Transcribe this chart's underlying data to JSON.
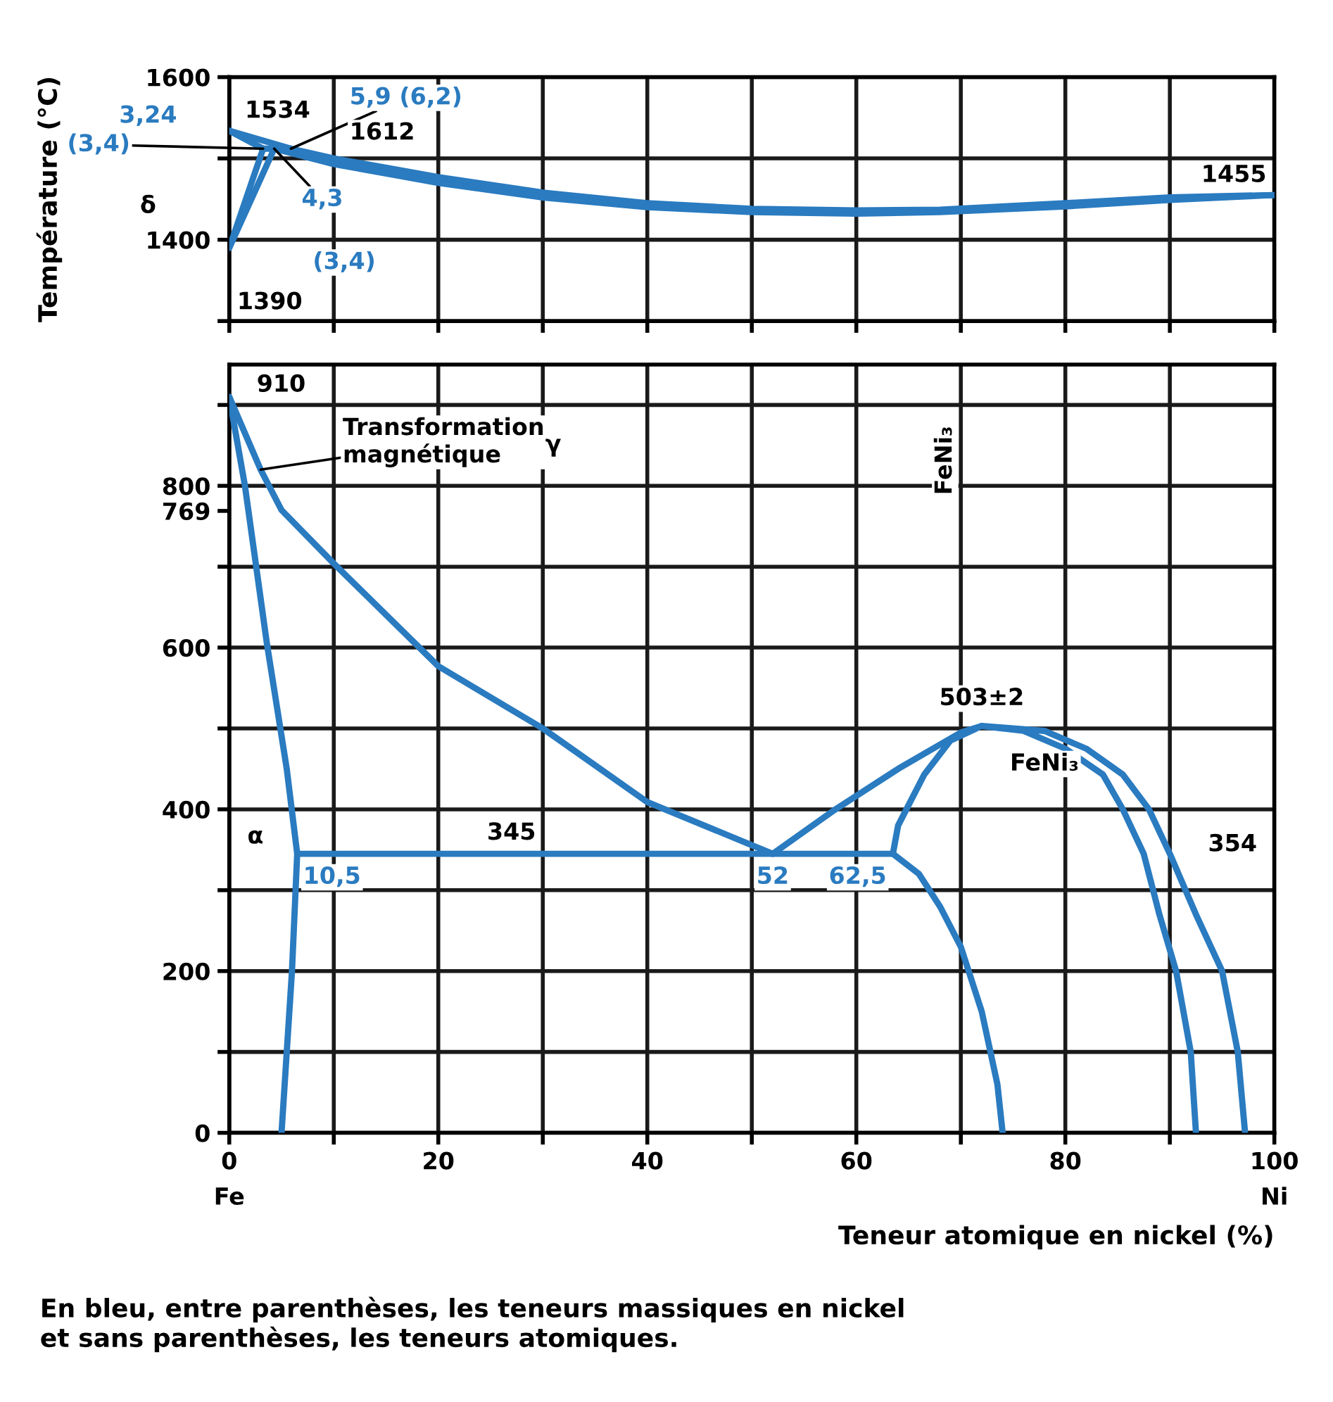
{
  "chart_data": [
    {
      "type": "line",
      "ylabel": "Température (°C)",
      "xlim": [
        0,
        100
      ],
      "ylim": [
        1300,
        1600
      ],
      "xticks": [
        0,
        {
          "value": 10,
          "label": null
        },
        {
          "value": 20,
          "label": null
        },
        {
          "value": 30,
          "label": null
        },
        {
          "value": 40,
          "label": null
        },
        {
          "value": 50,
          "label": null
        },
        {
          "value": 60,
          "label": null
        },
        {
          "value": 70,
          "label": null
        },
        {
          "value": 80,
          "label": null
        },
        {
          "value": 90,
          "label": null
        },
        {
          "value": 100,
          "label": null
        }
      ],
      "yticks": [
        {
          "value": 1300,
          "label": null
        },
        1400,
        {
          "value": 1500,
          "label": null
        },
        1600
      ],
      "tick_labels": "y",
      "grid": true,
      "legend": false,
      "marker": "none",
      "line_style": "solid",
      "series": [
        {
          "color": "#2a7bc0",
          "x": [
            0,
            5.9,
            10,
            20,
            30,
            40,
            50,
            60,
            68,
            80,
            90,
            100
          ],
          "values": [
            1534,
            1512,
            1500,
            1477,
            1458,
            1445,
            1438,
            1436,
            1437,
            1445,
            1452,
            1455
          ]
        },
        {
          "color": "#2a7bc0",
          "x": [
            4.3,
            10,
            20,
            30,
            40,
            50,
            60,
            68,
            80,
            90,
            100
          ],
          "values": [
            1512,
            1493,
            1470,
            1452,
            1440,
            1434,
            1432,
            1434,
            1441,
            1449,
            1455
          ]
        },
        {
          "color": "#2a7bc0",
          "x": [
            0,
            3.24
          ],
          "values": [
            1534,
            1512
          ]
        },
        {
          "color": "#2a7bc0",
          "x": [
            3.24,
            5.9
          ],
          "values": [
            1512,
            1512
          ]
        },
        {
          "color": "#2a7bc0",
          "x": [
            0,
            3.24
          ],
          "values": [
            1390,
            1512
          ]
        },
        {
          "color": "#2a7bc0",
          "x": [
            0,
            4.3
          ],
          "values": [
            1390,
            1512
          ]
        }
      ],
      "annotations": [
        {
          "text": "1534",
          "x": 0,
          "y": 1534
        },
        "3,24",
        {
          "text": "(3,4)",
          "x": 3.24,
          "y": 1512
        },
        "δ",
        {
          "text": "5,9 (6,2)",
          "x": 5.9,
          "y": 1512
        },
        {
          "text": "1612",
          "x": 5.9,
          "y": 1512
        },
        {
          "text": "4,3",
          "x": 4.3,
          "y": 1512
        },
        "(3,4)",
        {
          "text": "1390",
          "x": 0,
          "y": 1390
        },
        {
          "text": "1455",
          "x": 100,
          "y": 1455
        }
      ]
    },
    {
      "type": "line",
      "xlabel": "Teneur atomique en nickel (%)",
      "xlim": [
        0,
        100
      ],
      "ylim": [
        0,
        950
      ],
      "xticks": [
        0,
        {
          "value": 10,
          "label": null
        },
        20,
        {
          "value": 30,
          "label": null
        },
        40,
        {
          "value": 50,
          "label": null
        },
        60,
        {
          "value": 70,
          "label": null
        },
        80,
        {
          "value": 90,
          "label": null
        },
        100
      ],
      "yticks": [
        0,
        {
          "value": 100,
          "label": null
        },
        200,
        {
          "value": 300,
          "label": null
        },
        400,
        {
          "value": 500,
          "label": null
        },
        600,
        {
          "value": 700,
          "label": null
        },
        769,
        800,
        {
          "value": 900,
          "label": null
        }
      ],
      "grid": true,
      "legend": false,
      "marker": "none",
      "line_style": "solid",
      "series": [
        {
          "color": "#2a7bc0",
          "x": [
            0,
            3,
            5,
            10,
            20,
            30,
            40,
            52
          ],
          "values": [
            910,
            820,
            770,
            704,
            577,
            500,
            409,
            345
          ]
        },
        {
          "color": "#2a7bc0",
          "x": [
            0,
            1.5,
            3.6,
            5.5,
            6.5,
            6,
            5.5,
            5
          ],
          "values": [
            910,
            800,
            605,
            450,
            345,
            200,
            100,
            0
          ]
        },
        {
          "color": "#2a7bc0",
          "x": [
            6.5,
            63.5
          ],
          "values": [
            345,
            345
          ]
        },
        {
          "color": "#2a7bc0",
          "x": [
            52,
            58,
            64,
            70,
            72
          ],
          "values": [
            345,
            400,
            450,
            495,
            503
          ]
        },
        {
          "color": "#2a7bc0",
          "x": [
            63.5,
            64,
            66.5,
            69,
            71.5
          ],
          "values": [
            345,
            380,
            443,
            485,
            500
          ]
        },
        {
          "color": "#2a7bc0",
          "x": [
            92.5,
            92,
            90.6,
            89,
            87.5,
            85.5,
            83.6,
            80,
            76,
            72,
            78,
            82,
            85.5,
            88,
            90,
            92.5,
            95,
            96.5,
            97.2
          ],
          "values": [
            0,
            100,
            200,
            270,
            345,
            400,
            443,
            475,
            497,
            503,
            497,
            475,
            443,
            400,
            345,
            270,
            200,
            100,
            0
          ]
        },
        {
          "color": "#2a7bc0",
          "x": [
            63.5,
            66,
            68,
            70,
            72,
            73.5,
            74
          ],
          "values": [
            345,
            320,
            280,
            230,
            150,
            60,
            0
          ]
        }
      ],
      "annotations": [
        {
          "text": "910",
          "x": 0,
          "y": 910
        },
        {
          "text": "Transformation\nmagnétique",
          "x": 3,
          "y": 820
        },
        "γ",
        "FeNi₃",
        {
          "text": "503±2",
          "x": 72,
          "y": 503
        },
        "FeNi₃",
        "α",
        "345",
        {
          "text": "10,5",
          "x": 6.5,
          "y": 345
        },
        {
          "text": "52",
          "x": 52,
          "y": 345
        },
        {
          "text": "62,5",
          "x": 63.5,
          "y": 345
        },
        "354",
        "Fe",
        "Ni",
        "En bleu, entre parenthèses, les teneurs massiques en nickel\net sans parenthèses, les teneurs atomiques."
      ]
    }
  ]
}
